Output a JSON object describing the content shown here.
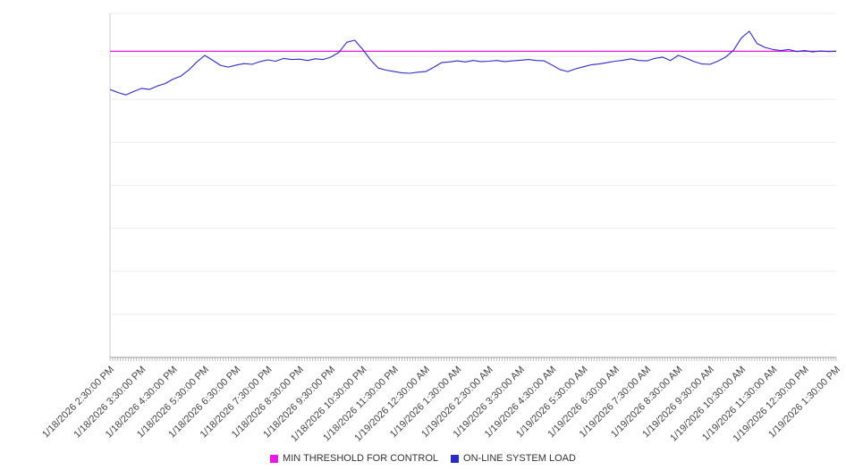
{
  "chart_data": {
    "type": "line",
    "title": "",
    "xlabel": "",
    "ylabel": "",
    "ylim": [
      0,
      100
    ],
    "y_axis_labels_visible": false,
    "grid": true,
    "grid_divisions": 8,
    "legend_position": "bottom-center",
    "x_labels": [
      "1/18/2026 2:30:00 PM",
      "1/18/2026 3:30:00 PM",
      "1/18/2026 4:30:00 PM",
      "1/18/2026 5:30:00 PM",
      "1/18/2026 6:30:00 PM",
      "1/18/2026 7:30:00 PM",
      "1/18/2026 8:30:00 PM",
      "1/18/2026 9:30:00 PM",
      "1/18/2026 10:30:00 PM",
      "1/18/2026 11:30:00 PM",
      "1/19/2026 12:30:00 AM",
      "1/19/2026 1:30:00 AM",
      "1/19/2026 2:30:00 AM",
      "1/19/2026 3:30:00 AM",
      "1/19/2026 4:30:00 AM",
      "1/19/2026 5:30:00 AM",
      "1/19/2026 6:30:00 AM",
      "1/19/2026 7:30:00 AM",
      "1/19/2026 8:30:00 AM",
      "1/19/2026 9:30:00 AM",
      "1/19/2026 10:30:00 AM",
      "1/19/2026 11:30:00 AM",
      "1/19/2026 12:30:00 PM",
      "1/19/2026 1:30:00 PM"
    ],
    "series": [
      {
        "name": "MIN THRESHOLD FOR CONTROL",
        "type": "threshold-line",
        "color": "#e619e6",
        "value": 89
      },
      {
        "name": "ON-LINE SYSTEM LOAD",
        "type": "line",
        "color": "#2b2bc8",
        "x_start_hours": 0,
        "x_step_hours": 0.25,
        "values": [
          77.9,
          77.0,
          76.3,
          77.3,
          78.2,
          77.9,
          78.9,
          79.6,
          80.9,
          81.8,
          83.6,
          85.9,
          87.8,
          86.4,
          84.9,
          84.4,
          85.0,
          85.4,
          85.2,
          86.0,
          86.5,
          86.1,
          86.9,
          86.6,
          86.7,
          86.3,
          86.8,
          86.6,
          87.3,
          88.7,
          91.6,
          92.2,
          89.6,
          86.5,
          84.1,
          83.5,
          83.1,
          82.7,
          82.6,
          82.9,
          83.1,
          84.3,
          85.7,
          85.9,
          86.2,
          85.9,
          86.3,
          86.0,
          86.1,
          86.3,
          86.0,
          86.2,
          86.4,
          86.6,
          86.3,
          86.2,
          85.0,
          83.7,
          83.1,
          83.9,
          84.5,
          85.1,
          85.3,
          85.7,
          86.1,
          86.4,
          86.8,
          86.3,
          86.2,
          86.9,
          87.3,
          86.3,
          87.8,
          87.0,
          86.0,
          85.3,
          85.2,
          86.1,
          87.3,
          89.3,
          92.9,
          94.8,
          91.2,
          90.1,
          89.5,
          89.2,
          89.5,
          88.9,
          89.2,
          88.8,
          89.1,
          88.9,
          89.0
        ]
      }
    ],
    "colors": {
      "gridline": "#ededed",
      "axis_spine": "#cccccc",
      "tick": "#999999",
      "label_text": "#444444",
      "background": "#ffffff"
    }
  }
}
